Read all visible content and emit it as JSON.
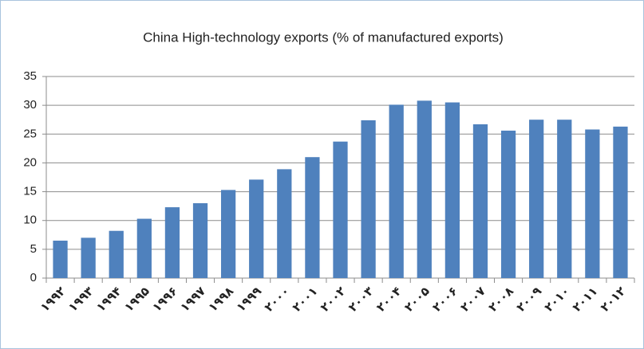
{
  "chart_data": {
    "type": "bar",
    "title": "China High-technology exports (% of manufactured exports)",
    "categories": [
      "۱۹۹۲",
      "۱۹۹۳",
      "۱۹۹۴",
      "۱۹۹۵",
      "۱۹۹۶",
      "۱۹۹۷",
      "۱۹۹۸",
      "۱۹۹۹",
      "۲۰۰۰",
      "۲۰۰۱",
      "۲۰۰۲",
      "۲۰۰۳",
      "۲۰۰۴",
      "۲۰۰۵",
      "۲۰۰۶",
      "۲۰۰۷",
      "۲۰۰۸",
      "۲۰۰۹",
      "۲۰۱۰",
      "۲۰۱۱",
      "۲۰۱۲"
    ],
    "values": [
      6.5,
      7.0,
      8.2,
      10.3,
      12.3,
      13.0,
      15.3,
      17.1,
      18.9,
      21.0,
      23.7,
      27.4,
      30.1,
      30.8,
      30.5,
      26.7,
      25.6,
      27.5,
      27.5,
      25.8,
      26.3
    ],
    "color": "#4f81bd",
    "ylim": [
      0,
      35
    ],
    "yticks": [
      0,
      5,
      10,
      15,
      20,
      25,
      30,
      35
    ],
    "grid": true
  }
}
